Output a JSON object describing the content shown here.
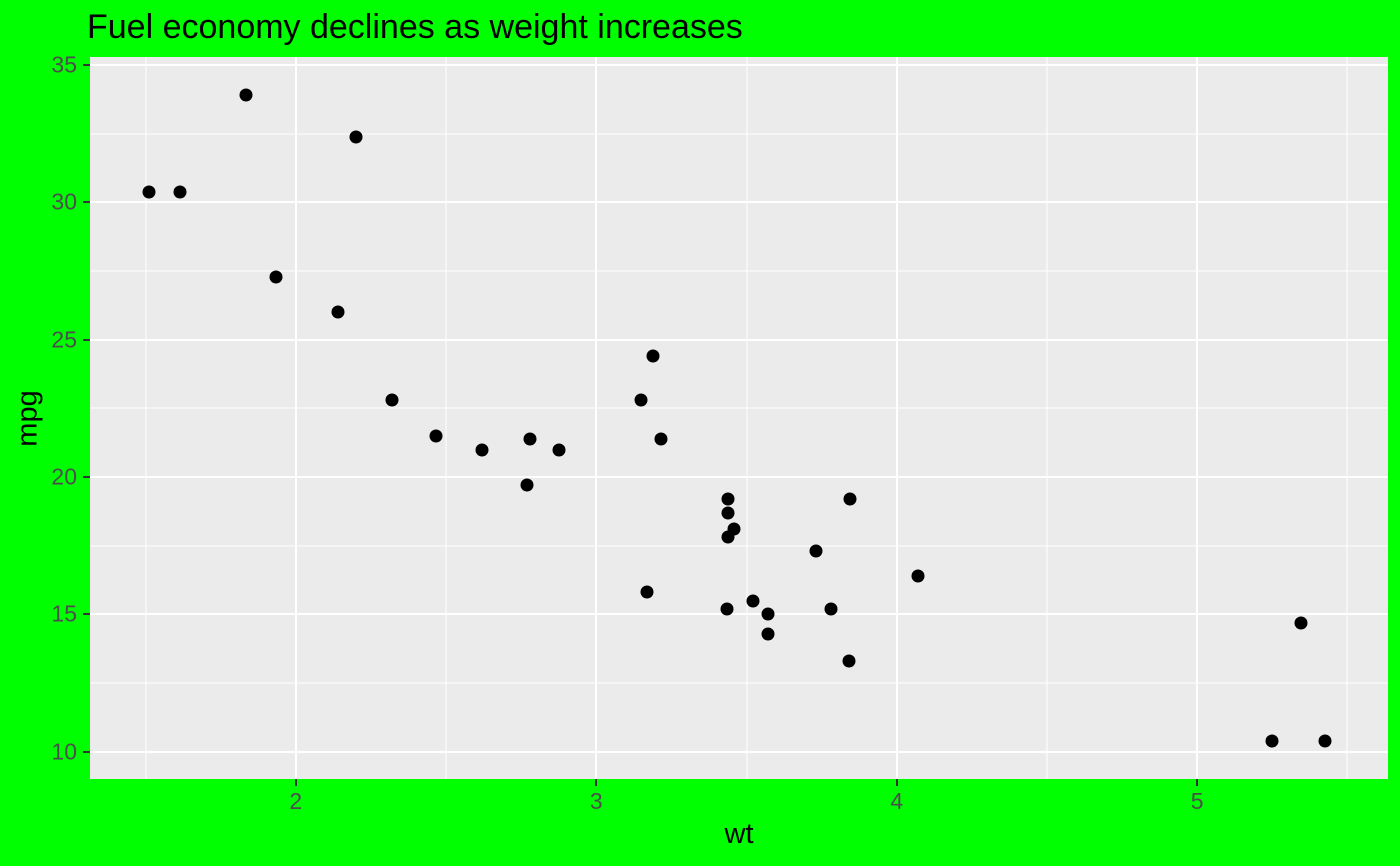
{
  "figure": {
    "background_color": "#00FF00"
  },
  "chart_data": {
    "type": "scatter",
    "title": "Fuel economy declines as weight increases",
    "xlabel": "wt",
    "ylabel": "mpg",
    "x_domain": [
      1.315,
      5.635
    ],
    "y_domain": [
      9.0,
      35.3
    ],
    "x_major_ticks": [
      2,
      3,
      4,
      5
    ],
    "x_minor_ticks": [
      1.5,
      2.5,
      3.5,
      4.5,
      5.5
    ],
    "y_major_ticks": [
      10,
      15,
      20,
      25,
      30,
      35
    ],
    "y_minor_ticks": [
      12.5,
      17.5,
      22.5,
      27.5,
      32.5
    ],
    "grid": true,
    "legend_position": "none",
    "panel_background": "#EBEBEB",
    "grid_color": "#FFFFFF",
    "point_color": "#000000",
    "tick_mark_color": "#333333",
    "tick_label_color": "#4D4D4D",
    "points_wt_mpg": [
      [
        2.62,
        21.0
      ],
      [
        2.875,
        21.0
      ],
      [
        2.32,
        22.8
      ],
      [
        3.215,
        21.4
      ],
      [
        3.44,
        18.7
      ],
      [
        3.46,
        18.1
      ],
      [
        3.57,
        14.3
      ],
      [
        3.19,
        24.4
      ],
      [
        3.15,
        22.8
      ],
      [
        3.44,
        19.2
      ],
      [
        3.44,
        17.8
      ],
      [
        4.07,
        16.4
      ],
      [
        3.73,
        17.3
      ],
      [
        3.78,
        15.2
      ],
      [
        5.25,
        10.4
      ],
      [
        5.424,
        10.4
      ],
      [
        5.345,
        14.7
      ],
      [
        2.2,
        32.4
      ],
      [
        1.615,
        30.4
      ],
      [
        1.835,
        33.9
      ],
      [
        2.465,
        21.5
      ],
      [
        3.52,
        15.5
      ],
      [
        3.435,
        15.2
      ],
      [
        3.84,
        13.3
      ],
      [
        3.845,
        19.2
      ],
      [
        1.935,
        27.3
      ],
      [
        2.14,
        26.0
      ],
      [
        1.513,
        30.4
      ],
      [
        3.17,
        15.8
      ],
      [
        2.77,
        19.7
      ],
      [
        3.57,
        15.0
      ],
      [
        2.78,
        21.4
      ]
    ]
  }
}
